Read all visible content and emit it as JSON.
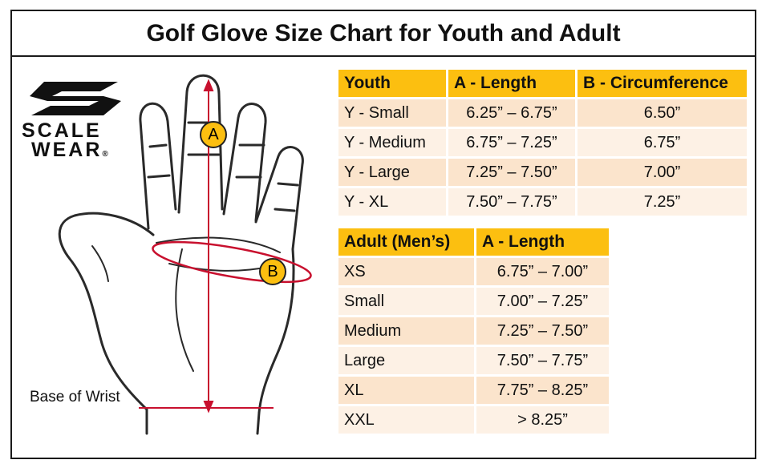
{
  "title": "Golf Glove Size Chart for Youth and Adult",
  "logo": {
    "line1": "SCALE",
    "line2": "WEAR",
    "mark": "®",
    "colors": {
      "ink": "#111111"
    }
  },
  "hand": {
    "label_a": "A",
    "label_b": "B",
    "wrist_label": "Base of Wrist",
    "colors": {
      "measure": "#c8102e",
      "badge": "#fcbf10"
    }
  },
  "youth_table": {
    "headers": [
      "Youth",
      "A - Length",
      "B - Circumference"
    ],
    "rows": [
      [
        "Y - Small",
        "6.25” – 6.75”",
        "6.50”"
      ],
      [
        "Y - Medium",
        "6.75” – 7.25”",
        "6.75”"
      ],
      [
        "Y - Large",
        "7.25” – 7.50”",
        "7.00”"
      ],
      [
        "Y - XL",
        "7.50” – 7.75”",
        "7.25”"
      ]
    ]
  },
  "adult_table": {
    "headers": [
      "Adult (Men’s)",
      "A - Length"
    ],
    "rows": [
      [
        "XS",
        "6.75” – 7.00”"
      ],
      [
        "Small",
        "7.00” – 7.25”"
      ],
      [
        "Medium",
        "7.25” – 7.50”"
      ],
      [
        "Large",
        "7.50” – 7.75”"
      ],
      [
        "XL",
        "7.75” – 8.25”"
      ],
      [
        "XXL",
        "> 8.25”"
      ]
    ]
  },
  "colors": {
    "header": "#fcbf10",
    "row_odd": "#fbe4cc",
    "row_even": "#fdf1e5"
  }
}
